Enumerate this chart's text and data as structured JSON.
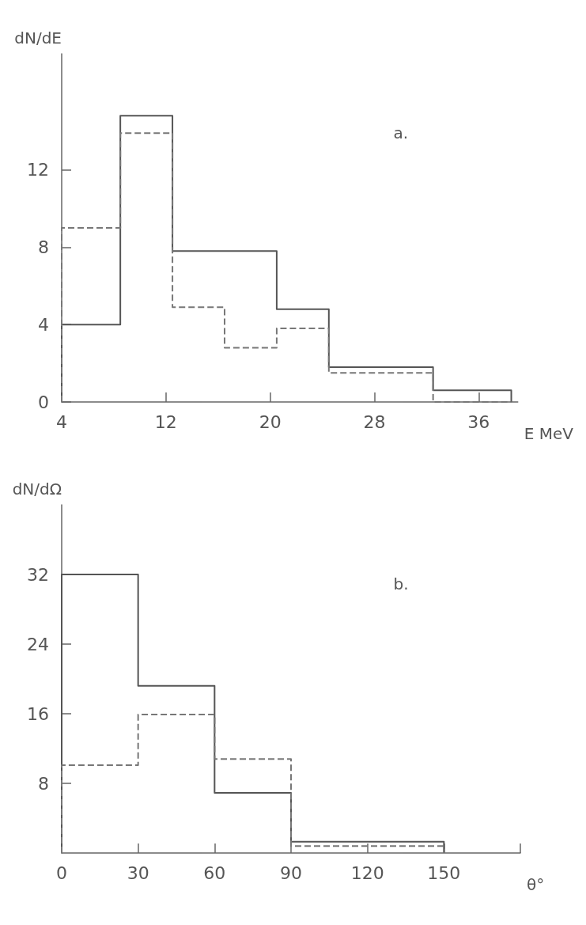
{
  "chart_data": [
    {
      "type": "histogram",
      "ylabel": "dN/dE",
      "xlabel": "E MeV",
      "annotations": [
        "a."
      ],
      "bins": [
        4,
        8.5,
        12.5,
        16.5,
        20.5,
        24.5,
        32.5,
        38.5
      ],
      "series": [
        {
          "color": "#555555",
          "line_style": "solid",
          "values": [
            4,
            14.8,
            7.8,
            7.8,
            4.8,
            1.8,
            0.6
          ]
        },
        {
          "color": "#777777",
          "line_style": "dashed",
          "values": [
            9,
            13.9,
            4.9,
            2.8,
            3.8,
            1.5,
            0
          ]
        }
      ],
      "xlim": [
        4,
        39
      ],
      "xticks": [
        4,
        12,
        20,
        28,
        36
      ],
      "ylim": [
        0,
        18
      ],
      "yticks": [
        0,
        4,
        8,
        12
      ],
      "grid": false
    },
    {
      "type": "histogram",
      "ylabel": "dN/dΩ",
      "xlabel": "θ°",
      "annotations": [
        "b."
      ],
      "bins": [
        0,
        30,
        60,
        90,
        120,
        150
      ],
      "series": [
        {
          "color": "#555555",
          "line_style": "solid",
          "values": [
            32,
            19.2,
            6.9,
            1.3,
            1.3
          ]
        },
        {
          "color": "#777777",
          "line_style": "dashed",
          "values": [
            10.1,
            15.9,
            10.8,
            0.8,
            0.8
          ]
        }
      ],
      "xlim": [
        0,
        180
      ],
      "xticks": [
        0,
        30,
        60,
        90,
        120,
        150,
        {
          "value": 180,
          "label": null
        }
      ],
      "ylim": [
        0,
        40
      ],
      "yticks": [
        8,
        16,
        24,
        32
      ],
      "grid": false
    }
  ]
}
